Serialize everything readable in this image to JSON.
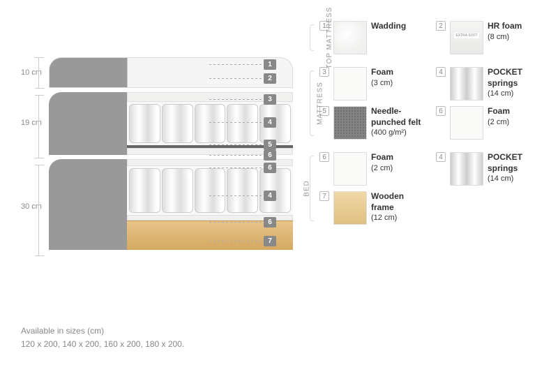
{
  "dimensions": {
    "d1": "10 cm",
    "d2": "19 cm",
    "d3": "30 cm"
  },
  "callouts": {
    "n1": "1",
    "n2": "2",
    "n3": "3",
    "n4": "4",
    "n5": "5",
    "n6": "6",
    "n7": "7"
  },
  "sections": {
    "top": {
      "label": "TOP MATTRESS",
      "items": [
        {
          "num": "1",
          "swatch": "sw-wadding",
          "title": "Wadding",
          "sub": ""
        },
        {
          "num": "2",
          "swatch": "sw-hrfoam",
          "title": "HR foam",
          "sub": "(8 cm)"
        }
      ]
    },
    "mattress": {
      "label": "MATTRESS",
      "items": [
        {
          "num": "3",
          "swatch": "sw-white",
          "title": "Foam",
          "sub": "(3 cm)"
        },
        {
          "num": "4",
          "swatch": "sw-pocket",
          "title": "POCKET springs",
          "sub": "(14 cm)"
        },
        {
          "num": "5",
          "swatch": "sw-felt",
          "title": "Needle-punched felt",
          "sub": "(400 g/m²)"
        },
        {
          "num": "6",
          "swatch": "sw-white",
          "title": "Foam",
          "sub": "(2 cm)"
        }
      ]
    },
    "bed": {
      "label": "BED",
      "items": [
        {
          "num": "6",
          "swatch": "sw-white",
          "title": "Foam",
          "sub": "(2 cm)"
        },
        {
          "num": "4",
          "swatch": "sw-pocket",
          "title": "POCKET springs",
          "sub": "(14 cm)"
        },
        {
          "num": "7",
          "swatch": "sw-wood",
          "title": "Wooden frame",
          "sub": "(12 cm)"
        }
      ]
    }
  },
  "footer": {
    "line1": "Available in sizes (cm)",
    "line2": "120 x 200, 140 x 200, 160 x 200, 180 x 200."
  },
  "colors": {
    "grey": "#999999",
    "lightgrey": "#f5f5f5",
    "wood": "#e0c080",
    "text_muted": "#888888"
  }
}
